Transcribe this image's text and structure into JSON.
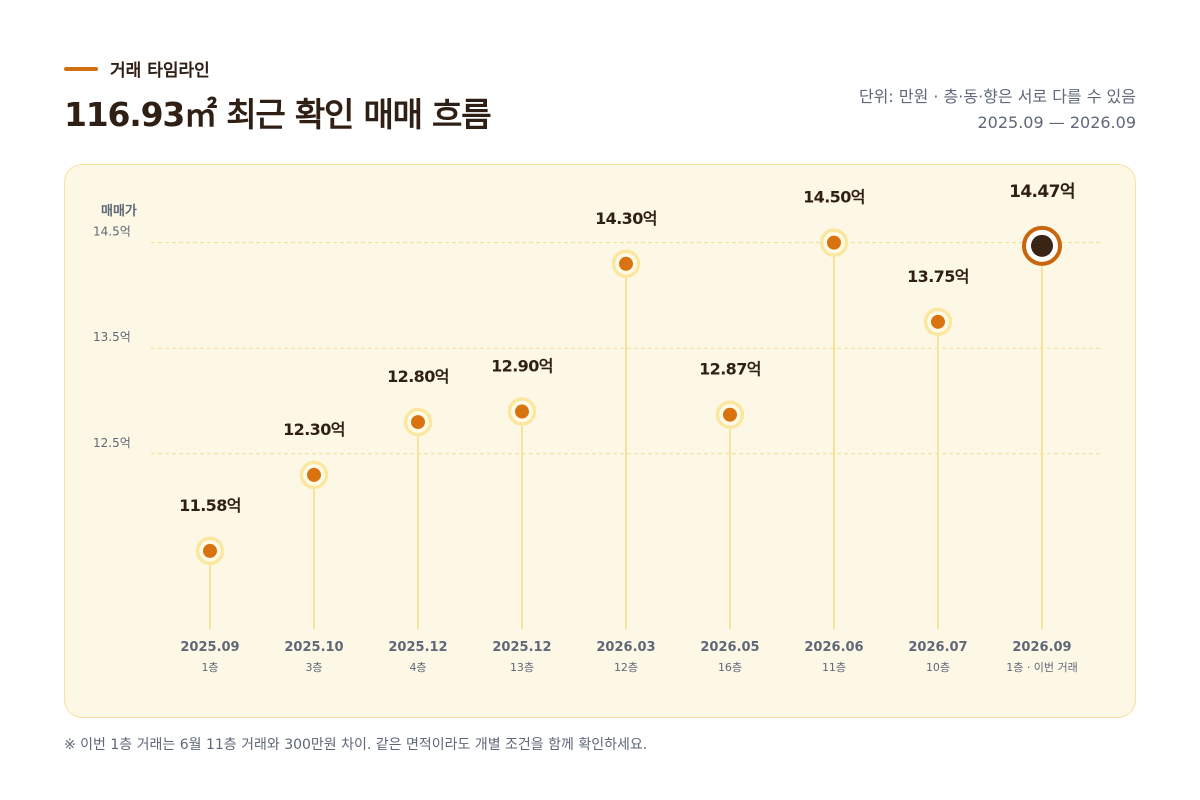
{
  "header": {
    "eyebrow": "거래 타임라인",
    "title": "116.93㎡ 최근 확인 매매 흐름",
    "meta_unit": "단위: 만원 · 층·동·향은 서로 다를 수 있음",
    "meta_range": "2025.09 — 2026.09"
  },
  "chart_data": {
    "type": "scatter",
    "ylabel": "매매가",
    "ylim": [
      11.2,
      14.62
    ],
    "y_ticks": [
      {
        "value": 14.5,
        "label": "14.5억"
      },
      {
        "value": 13.5,
        "label": "13.5억"
      },
      {
        "value": 12.5,
        "label": "12.5억"
      }
    ],
    "grid": true,
    "points": [
      {
        "date": "2025.09",
        "floor": "1층",
        "value": 11.58,
        "label": "11.58억"
      },
      {
        "date": "2025.10",
        "floor": "3층",
        "value": 12.3,
        "label": "12.30억"
      },
      {
        "date": "2025.12",
        "floor": "4층",
        "value": 12.8,
        "label": "12.80억"
      },
      {
        "date": "2025.12",
        "floor": "13층",
        "value": 12.9,
        "label": "12.90억"
      },
      {
        "date": "2026.03",
        "floor": "12층",
        "value": 14.3,
        "label": "14.30억"
      },
      {
        "date": "2026.05",
        "floor": "16층",
        "value": 12.87,
        "label": "12.87억"
      },
      {
        "date": "2026.06",
        "floor": "11층",
        "value": 14.5,
        "label": "14.50억"
      },
      {
        "date": "2026.07",
        "floor": "10층",
        "value": 13.75,
        "label": "13.75억"
      },
      {
        "date": "2026.09",
        "floor": "1층 · 이번 거래",
        "value": 14.47,
        "label": "14.47억",
        "highlight": true
      }
    ],
    "colors": {
      "marker": "#d9730f",
      "ring": "#fbe7a0",
      "stem": "#f7e49a",
      "grid": "#f2dc93",
      "highlight_fill": "#3a2415",
      "highlight_ring": "#c9650a",
      "value_text": "#2f1f14",
      "axis_text": "#5e6878"
    }
  },
  "footnote": "※ 이번 1층 거래는 6월 11층 거래와 300만원 차이. 같은 면적이라도 개별 조건을 함께 확인하세요."
}
